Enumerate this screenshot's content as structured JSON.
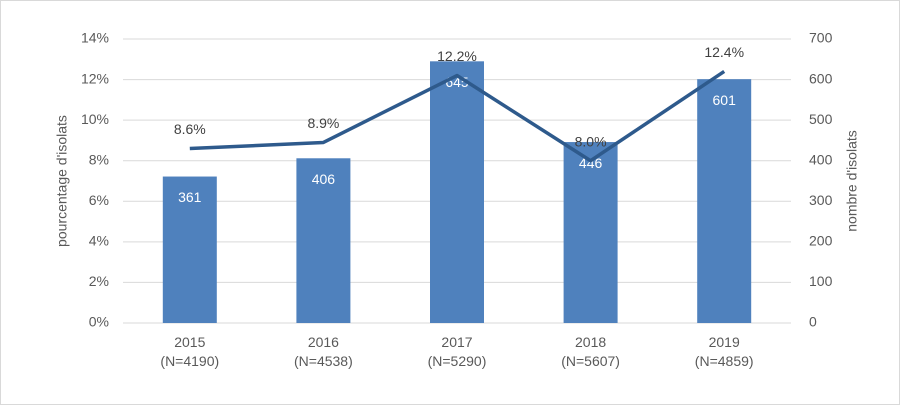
{
  "chart_data": {
    "type": "bar",
    "categories": [
      "2015\n(N=4190)",
      "2016\n(N=4538)",
      "2017\n(N=5290)",
      "2018\n(N=5607)",
      "2019\n(N=4859)"
    ],
    "series": [
      {
        "type": "bar",
        "axis": "y2",
        "color": "#4f81bd",
        "values": [
          361,
          406,
          645,
          446,
          601
        ]
      },
      {
        "type": "line",
        "color": "#2e5a8c",
        "values": [
          8.6,
          8.9,
          12.2,
          8.0,
          12.4
        ],
        "value_labels": [
          "8.6%",
          "8.9%",
          "12.2%",
          "8.0%",
          "12.4%"
        ]
      }
    ],
    "ylabel": "pourcentage d'isolats",
    "y2label": "nombre d'isolats",
    "ylim": [
      0,
      14
    ],
    "yticks": [
      {
        "value": 0,
        "label": "0%"
      },
      {
        "value": 2,
        "label": "2%"
      },
      {
        "value": 4,
        "label": "4%"
      },
      {
        "value": 6,
        "label": "6%"
      },
      {
        "value": 8,
        "label": "8%"
      },
      {
        "value": 10,
        "label": "10%"
      },
      {
        "value": 12,
        "label": "12%"
      },
      {
        "value": 14,
        "label": "14%"
      }
    ],
    "y2lim": [
      0,
      700
    ],
    "y2ticks": [
      0,
      100,
      200,
      300,
      400,
      500,
      600,
      700
    ],
    "grid": true
  }
}
